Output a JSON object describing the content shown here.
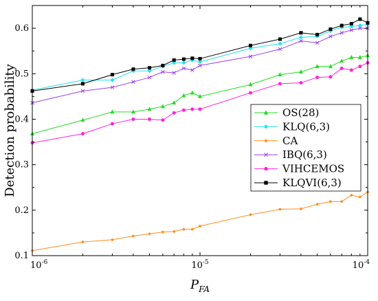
{
  "chart_data": {
    "type": "line",
    "xlabel_main": "P",
    "xlabel_sub": "FA",
    "ylabel": "Detection probability",
    "x_scale": "log",
    "xlim": [
      1e-06,
      0.0001
    ],
    "ylim": [
      0.1,
      0.65
    ],
    "x_ticks": [
      {
        "value": 1e-06,
        "base": "10",
        "exp": "-6"
      },
      {
        "value": 1e-05,
        "base": "10",
        "exp": "-5"
      },
      {
        "value": 0.0001,
        "base": "10",
        "exp": "-4"
      }
    ],
    "y_ticks": [
      {
        "value": 0.1,
        "label": "0.1"
      },
      {
        "value": 0.2,
        "label": "0.2"
      },
      {
        "value": 0.3,
        "label": "0.3"
      },
      {
        "value": 0.4,
        "label": "0.4"
      },
      {
        "value": 0.5,
        "label": "0.5"
      },
      {
        "value": 0.6,
        "label": "0.6"
      }
    ],
    "grid": false,
    "legend_position": "center-right",
    "x": [
      1e-06,
      2e-06,
      3e-06,
      4e-06,
      5e-06,
      6e-06,
      7e-06,
      8e-06,
      9e-06,
      1e-05,
      2e-05,
      3e-05,
      4e-05,
      5e-05,
      6e-05,
      7e-05,
      8e-05,
      9e-05,
      0.0001
    ],
    "series": [
      {
        "name": "OS(28)",
        "color": "#22dd22",
        "marker": "triangle",
        "values": [
          0.368,
          0.398,
          0.416,
          0.416,
          0.422,
          0.428,
          0.436,
          0.452,
          0.458,
          0.45,
          0.476,
          0.498,
          0.504,
          0.516,
          0.516,
          0.528,
          0.536,
          0.536,
          0.54
        ]
      },
      {
        "name": "KLQ(6,3)",
        "color": "#22e0f0",
        "marker": "diamond",
        "values": [
          0.464,
          0.486,
          0.486,
          0.506,
          0.506,
          0.516,
          0.524,
          0.524,
          0.53,
          0.526,
          0.556,
          0.566,
          0.58,
          0.582,
          0.594,
          0.602,
          0.604,
          0.606,
          0.608
        ]
      },
      {
        "name": "CA",
        "color": "#ff8c1a",
        "marker": "star",
        "values": [
          0.111,
          0.13,
          0.135,
          0.143,
          0.148,
          0.152,
          0.153,
          0.158,
          0.158,
          0.165,
          0.19,
          0.202,
          0.203,
          0.213,
          0.219,
          0.219,
          0.233,
          0.229,
          0.24
        ]
      },
      {
        "name": "IBQ(6,3)",
        "color": "#9a40f0",
        "marker": "x",
        "values": [
          0.436,
          0.462,
          0.47,
          0.482,
          0.492,
          0.504,
          0.502,
          0.512,
          0.508,
          0.518,
          0.538,
          0.554,
          0.572,
          0.568,
          0.582,
          0.59,
          0.596,
          0.6,
          0.6
        ]
      },
      {
        "name": "VIHCEMOS",
        "color": "#ff22dd",
        "marker": "circle",
        "values": [
          0.348,
          0.368,
          0.39,
          0.4,
          0.4,
          0.398,
          0.414,
          0.42,
          0.422,
          0.422,
          0.458,
          0.478,
          0.48,
          0.492,
          0.493,
          0.512,
          0.508,
          0.516,
          0.524
        ]
      },
      {
        "name": "KLQVI(6,3)",
        "color": "#000000",
        "marker": "square",
        "values": [
          0.462,
          0.478,
          0.498,
          0.51,
          0.513,
          0.518,
          0.53,
          0.532,
          0.534,
          0.533,
          0.562,
          0.576,
          0.59,
          0.586,
          0.598,
          0.606,
          0.61,
          0.62,
          0.612
        ]
      }
    ]
  }
}
